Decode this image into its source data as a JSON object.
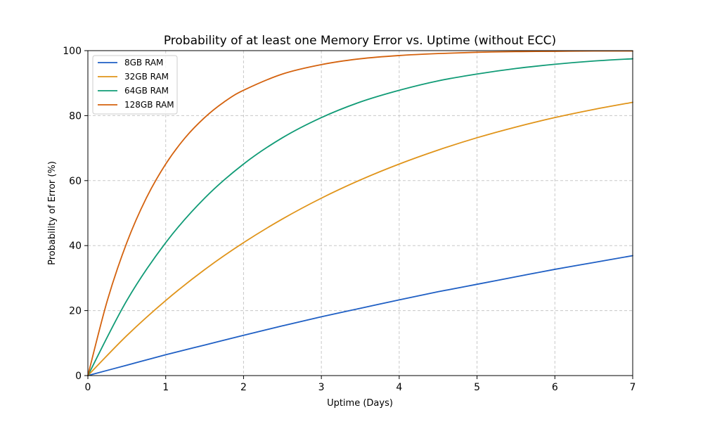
{
  "chart_data": {
    "type": "line",
    "title": "Probability of at least one Memory Error vs. Uptime (without ECC)",
    "xlabel": "Uptime (Days)",
    "ylabel": "Probability of Error (%)",
    "xlim": [
      0,
      7
    ],
    "ylim": [
      0,
      100
    ],
    "xticks": [
      0,
      1,
      2,
      3,
      4,
      5,
      6,
      7
    ],
    "yticks": [
      0,
      20,
      40,
      60,
      80,
      100
    ],
    "grid": true,
    "legend_position": "upper-left",
    "series": [
      {
        "name": "8GB RAM",
        "color": "#1f5fc4",
        "x": [
          0,
          0.5,
          1,
          1.5,
          2,
          2.5,
          3,
          3.5,
          4,
          4.5,
          5,
          5.5,
          6,
          6.5,
          7
        ],
        "y": [
          0,
          3.2,
          6.4,
          9.4,
          12.4,
          15.3,
          18.1,
          20.7,
          23.3,
          25.8,
          28.1,
          30.4,
          32.7,
          34.8,
          36.9
        ]
      },
      {
        "name": "32GB RAM",
        "color": "#e0941a",
        "x": [
          0,
          0.5,
          1,
          1.5,
          2,
          2.5,
          3,
          3.5,
          4,
          4.5,
          5,
          5.5,
          6,
          6.5,
          7
        ],
        "y": [
          0,
          12.3,
          23.1,
          32.6,
          40.9,
          48.2,
          54.6,
          60.2,
          65.1,
          69.4,
          73.2,
          76.5,
          79.4,
          81.9,
          84.1
        ]
      },
      {
        "name": "64GB RAM",
        "color": "#109b76",
        "x": [
          0,
          0.5,
          1,
          1.5,
          2,
          2.5,
          3,
          3.5,
          4,
          4.5,
          5,
          5.5,
          6,
          6.5,
          7
        ],
        "y": [
          0,
          23.1,
          40.9,
          54.6,
          65.1,
          73.2,
          79.4,
          84.2,
          87.8,
          90.7,
          92.8,
          94.5,
          95.8,
          96.8,
          97.5
        ]
      },
      {
        "name": "128GB RAM",
        "color": "#d4620e",
        "x": [
          0,
          0.25,
          0.5,
          0.75,
          1,
          1.25,
          1.5,
          1.75,
          2,
          2.5,
          3,
          3.5,
          4,
          4.5,
          5,
          5.5,
          6,
          6.5,
          7
        ],
        "y": [
          0,
          23.1,
          40.9,
          54.6,
          65.1,
          73.2,
          79.4,
          84.2,
          87.8,
          92.8,
          95.7,
          97.5,
          98.5,
          99.1,
          99.5,
          99.7,
          99.8,
          99.9,
          99.9
        ]
      }
    ]
  }
}
